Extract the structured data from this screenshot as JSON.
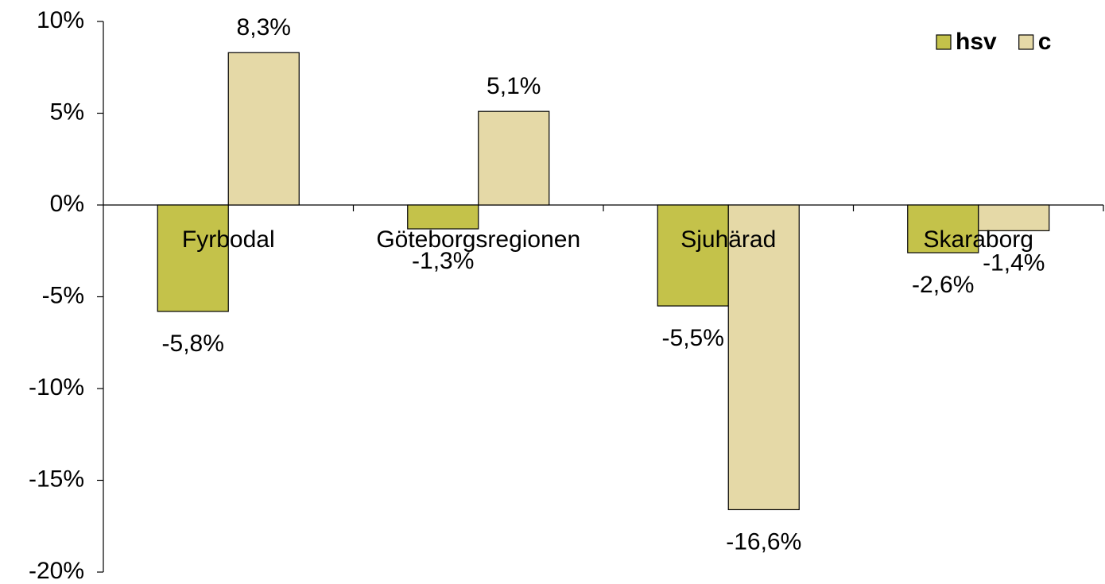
{
  "chart_data": {
    "type": "bar",
    "categories": [
      "Fyrbodal",
      "Göteborgsregionen",
      "Sjuhärad",
      "Skaraborg"
    ],
    "series": [
      {
        "name": "hsv",
        "color": "#c4c24a",
        "values": [
          -5.8,
          -1.3,
          -5.5,
          -2.6
        ],
        "value_labels": [
          "-5,8%",
          "-1,3%",
          "-5,5%",
          "-2,6%"
        ]
      },
      {
        "name": "c",
        "color": "#e5d9a7",
        "values": [
          8.3,
          5.1,
          -16.6,
          -1.4
        ],
        "value_labels": [
          "8,3%",
          "5,1%",
          "-16,6%",
          "-1,4%"
        ]
      }
    ],
    "ylim": [
      -20,
      10
    ],
    "yticks": [
      {
        "value": -20,
        "label": "-20%"
      },
      {
        "value": -15,
        "label": "-15%"
      },
      {
        "value": -10,
        "label": "-10%"
      },
      {
        "value": -5,
        "label": "-5%"
      },
      {
        "value": 0,
        "label": "0%"
      },
      {
        "value": 5,
        "label": "5%"
      },
      {
        "value": 10,
        "label": "10%"
      }
    ],
    "legend": "top-right"
  }
}
